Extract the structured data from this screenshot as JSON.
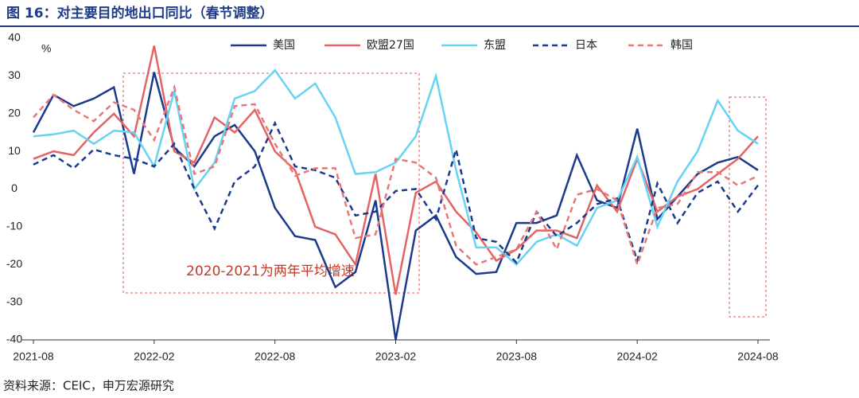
{
  "chart_data": {
    "type": "line",
    "title": "图 16：对主要目的地出口同比（春节调整）",
    "y_label": "%",
    "annotation": "2020-2021为两年平均增速",
    "source": "资料来源：CEIC，申万宏源研究",
    "categories": [
      "2021-08",
      null,
      null,
      null,
      null,
      null,
      "2022-02",
      null,
      null,
      null,
      null,
      null,
      "2022-08",
      null,
      null,
      null,
      null,
      null,
      "2023-02",
      null,
      null,
      null,
      null,
      null,
      "2023-08",
      null,
      null,
      null,
      null,
      null,
      "2024-02",
      null,
      null,
      null,
      null,
      null,
      "2024-08"
    ],
    "series": [
      {
        "name": "美国",
        "color": "#1b3a8c",
        "style": "solid",
        "values": [
          15,
          25,
          22,
          24,
          27,
          4,
          31,
          11,
          6,
          14,
          17,
          10,
          -5,
          -12.5,
          -13.5,
          -26,
          -22,
          -3,
          -40,
          -11,
          -7,
          -18,
          -22.5,
          -22,
          -9,
          -9,
          -7,
          9,
          -3,
          -5,
          16,
          -8,
          -2,
          4,
          7,
          8.5,
          5
        ]
      },
      {
        "name": "欧盟27国",
        "color": "#e36464",
        "style": "solid",
        "values": [
          8,
          10,
          9,
          15,
          20,
          14,
          38,
          10,
          7,
          19,
          15,
          21,
          10,
          5,
          -10,
          -12,
          -20,
          4,
          -28,
          -1,
          2,
          -6,
          -11.5,
          -19,
          -16,
          -11,
          -11,
          -13,
          1,
          -6,
          8,
          -6,
          -2,
          0,
          4,
          8,
          14
        ]
      },
      {
        "name": "东盟",
        "color": "#66d2f4",
        "style": "solid",
        "values": [
          14,
          14.5,
          15.5,
          12,
          15.5,
          15,
          6,
          26,
          0,
          7,
          24,
          26,
          31.5,
          24,
          28,
          19,
          4,
          4.5,
          7,
          14,
          30,
          5,
          -15.5,
          -15.5,
          -20,
          -14,
          -12,
          -15,
          -5,
          -3,
          8.5,
          -10,
          2,
          10,
          23.5,
          15.5,
          12
        ]
      },
      {
        "name": "日本",
        "color": "#1b3a8c",
        "style": "dashed",
        "values": [
          6.5,
          9,
          5.5,
          10.5,
          9,
          8,
          6,
          12,
          0,
          -10.5,
          2,
          6,
          17.5,
          6,
          5,
          3,
          -7,
          -6,
          -0.5,
          0,
          -8,
          10.5,
          -13,
          -14,
          -19.5,
          -6,
          -12.5,
          -9,
          -4,
          -2.5,
          -19,
          1.5,
          -9,
          -1,
          2,
          -6,
          1
        ]
      },
      {
        "name": "韩国",
        "color": "#e87878",
        "style": "dashed",
        "values": [
          19,
          25,
          21,
          18,
          23,
          21,
          13,
          27,
          4,
          6,
          22,
          22.5,
          12,
          3.5,
          5.5,
          5.5,
          -13,
          -12,
          8,
          7,
          3,
          -15,
          -20,
          -18,
          -16,
          -6,
          -16,
          -1.5,
          0,
          -3,
          -20,
          -5,
          -4,
          4.5,
          4.5,
          1,
          3.5
        ]
      }
    ],
    "ylim": [
      -40,
      40
    ],
    "yticks": [
      -40,
      -30,
      -20,
      -10,
      0,
      10,
      20,
      30,
      40
    ],
    "grid": false
  }
}
